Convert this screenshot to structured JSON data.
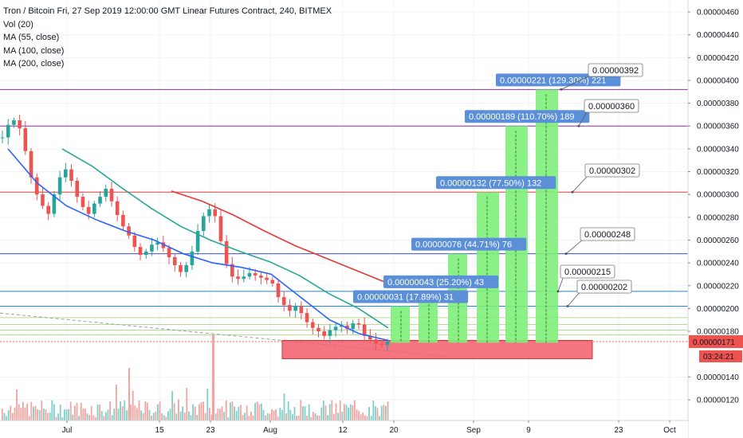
{
  "header": {
    "title": "Tron / Bitcoin Fri, 27 Sep 2019 12:00:00 GMT Linear Futures Contract, 240, BITMEX",
    "indicators": [
      "Vol (20)",
      "MA (55, close)",
      "MA (100, close)",
      "MA (200, close)"
    ]
  },
  "chart_data": {
    "type": "candlestick",
    "title": "Tron / Bitcoin Fri, 27 Sep 2019 12:00:00 GMT Linear Futures Contract, 240, BITMEX",
    "y_axis": {
      "ticks": [
        "0.00000460",
        "0.00000440",
        "0.00000420",
        "0.00000400",
        "0.00000380",
        "0.00000360",
        "0.00000340",
        "0.00000320",
        "0.00000300",
        "0.00000280",
        "0.00000260",
        "0.00000240",
        "0.00000220",
        "0.00000200",
        "0.00000180",
        "0.00000140",
        "0.00000120"
      ],
      "range": [
        1.12e-06,
        4.68e-06
      ]
    },
    "x_axis": {
      "ticks": [
        "Jul",
        "15",
        "23",
        "Aug",
        "12",
        "20",
        "Sep",
        "9",
        "23",
        "Oct"
      ]
    },
    "price_series": [
      3.5e-06,
      3.61e-06,
      3.65e-06,
      3.58e-06,
      3.38e-06,
      3.15e-06,
      3e-06,
      2.9e-06,
      2.83e-06,
      3e-06,
      3.15e-06,
      3.22e-06,
      3.12e-06,
      2.98e-06,
      2.89e-06,
      2.83e-06,
      2.92e-06,
      2.98e-06,
      3.05e-06,
      2.94e-06,
      2.82e-06,
      2.72e-06,
      2.64e-06,
      2.54e-06,
      2.47e-06,
      2.5e-06,
      2.56e-06,
      2.58e-06,
      2.53e-06,
      2.45e-06,
      2.38e-06,
      2.32e-06,
      2.38e-06,
      2.5e-06,
      2.68e-06,
      2.81e-06,
      2.87e-06,
      2.81e-06,
      2.59e-06,
      2.39e-06,
      2.28e-06,
      2.26e-06,
      2.28e-06,
      2.31e-06,
      2.29e-06,
      2.27e-06,
      2.25e-06,
      2.22e-06,
      2.1e-06,
      2.03e-06,
      1.98e-06,
      2.02e-06,
      1.96e-06,
      1.88e-06,
      1.83e-06,
      1.8e-06,
      1.76e-06,
      1.81e-06,
      1.84e-06,
      1.85e-06,
      1.82e-06,
      1.87e-06,
      1.86e-06,
      1.76e-06,
      1.73e-06,
      1.69e-06,
      1.68e-06,
      1.71e-06
    ],
    "moving_averages": [
      {
        "name": "MA (55, close)",
        "color": "#2962ff",
        "values": [
          3.4e-06,
          3.1e-06,
          2.9e-06,
          2.78e-06,
          2.68e-06,
          2.6e-06,
          2.48e-06,
          2.4e-06,
          2.36e-06,
          2.3e-06,
          2.1e-06,
          1.9e-06,
          1.78e-06,
          1.72e-06
        ]
      },
      {
        "name": "MA (100, close)",
        "color": "#26a69a",
        "values": [
          3.4e-06,
          3.25e-06,
          3.06e-06,
          2.88e-06,
          2.72e-06,
          2.6e-06,
          2.5e-06,
          2.41e-06,
          2.29e-06,
          2.13e-06,
          2e-06,
          1.83e-06
        ]
      },
      {
        "name": "MA (200, close)",
        "color": "#e53935",
        "values": [
          3.03e-06,
          2.94e-06,
          2.82e-06,
          2.68e-06,
          2.55e-06,
          2.44e-06,
          2.33e-06,
          2.22e-06
        ]
      }
    ],
    "horizontal_levels": [
      {
        "value": 3.92e-06,
        "color": "#9c27b0",
        "label": "0.00000392"
      },
      {
        "value": 3.6e-06,
        "color": "#9c27b0",
        "label": "0.00000360"
      },
      {
        "value": 3.02e-06,
        "color": "#e53935",
        "label": "0.00000302"
      },
      {
        "value": 2.48e-06,
        "color": "#3f51b5",
        "label": "0.00000248"
      },
      {
        "value": 2.15e-06,
        "color": "#1e88e5",
        "label": "0.00000215"
      },
      {
        "value": 2.02e-06,
        "color": "#1e88e5",
        "label": "0.00000202"
      }
    ],
    "support_zone": {
      "top": 1.72e-06,
      "bottom": 1.56e-06,
      "color": "#f25d6b"
    },
    "targets": [
      {
        "label": "0.00000031 (17.89%) 31",
        "top": 2.02e-06
      },
      {
        "label": "0.00000043 (25.20%) 43",
        "top": 2.15e-06
      },
      {
        "label": "0.00000076 (44.71%) 76",
        "top": 2.48e-06
      },
      {
        "label": "0.00000132 (77.50%) 132",
        "top": 3.02e-06
      },
      {
        "label": "0.00000189 (110.70%) 189",
        "top": 3.6e-06
      },
      {
        "label": "0.00000221 (129.30%) 221",
        "top": 3.92e-06
      }
    ],
    "target_base": 1.7e-06,
    "price_tag": {
      "value": "0.00000171",
      "timer": "03:24:21",
      "color": "#ef5350"
    }
  }
}
